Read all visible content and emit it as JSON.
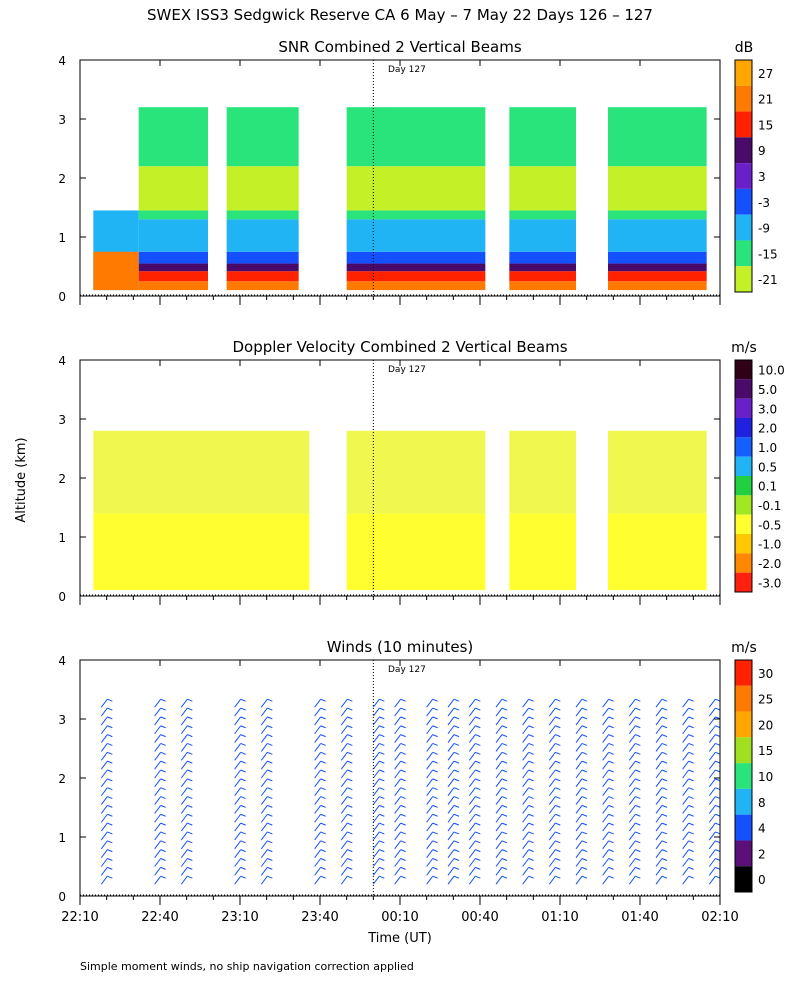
{
  "figure": {
    "title": "SWEX ISS3 Sedgwick Reserve CA   6 May –  7 May 22 Days 126 – 127",
    "ylabel": "Altitude (km)",
    "xlabel": "Time (UT)",
    "footnote": "Simple moment winds, no ship navigation correction applied",
    "day_marker": "Day 127"
  },
  "chart_data": [
    {
      "type": "heatmap",
      "title": "SNR Combined 2 Vertical Beams",
      "units": "dB",
      "xlim_minutes": [
        0,
        240
      ],
      "ylim": [
        0,
        4
      ],
      "yticks": [
        "0",
        "1",
        "2",
        "3",
        "4"
      ],
      "colorbar": {
        "labels": [
          "27",
          "21",
          "15",
          "9",
          "3",
          "-3",
          "-9",
          "-15",
          "-21"
        ],
        "colors": [
          "#ffa600",
          "#ff7a00",
          "#ff2200",
          "#4a0a6a",
          "#6a20c8",
          "#1450ff",
          "#20b4f4",
          "#28e47a",
          "#c4f028"
        ]
      },
      "fill_layers_km": [
        {
          "from": 0.1,
          "to": 0.25,
          "color": "#ff7a00"
        },
        {
          "from": 0.25,
          "to": 0.42,
          "color": "#ff2200"
        },
        {
          "from": 0.42,
          "to": 0.55,
          "color": "#4a0a6a"
        },
        {
          "from": 0.55,
          "to": 0.75,
          "color": "#1450ff"
        },
        {
          "from": 0.75,
          "to": 1.3,
          "color": "#20b4f4"
        },
        {
          "from": 1.3,
          "to": 1.45,
          "color": "#28e47a"
        },
        {
          "from": 1.45,
          "to": 2.2,
          "color": "#c4f028"
        },
        {
          "from": 2.2,
          "to": 3.2,
          "color": "#28e47a"
        }
      ]
    },
    {
      "type": "heatmap",
      "title": "Doppler Velocity Combined 2 Vertical Beams",
      "units": "m/s",
      "xlim_minutes": [
        0,
        240
      ],
      "ylim": [
        0,
        4
      ],
      "yticks": [
        "0",
        "1",
        "2",
        "3",
        "4"
      ],
      "colorbar": {
        "labels": [
          "10.0",
          "5.0",
          "3.0",
          "2.0",
          "1.0",
          "0.5",
          "0.1",
          "-0.1",
          "-0.5",
          "-1.0",
          "-2.0",
          "-3.0"
        ],
        "colors": [
          "#300018",
          "#4a0a6a",
          "#6a20c8",
          "#2020e0",
          "#1460ff",
          "#20b4f4",
          "#20d040",
          "#a0e820",
          "#ffff30",
          "#ffc800",
          "#ff8800",
          "#ff2010"
        ]
      },
      "fill_layers_km": [
        {
          "from": 0.1,
          "to": 1.4,
          "color": "#ffff30"
        },
        {
          "from": 1.4,
          "to": 2.8,
          "color": "#f0f850"
        }
      ]
    },
    {
      "type": "barb",
      "title": "Winds (10 minutes)",
      "units": "m/s",
      "xlim_minutes": [
        0,
        240
      ],
      "ylim": [
        0,
        4
      ],
      "yticks": [
        "0",
        "1",
        "2",
        "3",
        "4"
      ],
      "xticks": [
        "22:10",
        "22:40",
        "23:10",
        "23:40",
        "00:10",
        "00:40",
        "01:10",
        "01:40",
        "02:10"
      ],
      "colorbar": {
        "labels": [
          "30",
          "25",
          "20",
          "15",
          "10",
          "8",
          "4",
          "2",
          "0"
        ],
        "colors": [
          "#ff2200",
          "#ff7a00",
          "#ffa600",
          "#a0e020",
          "#28e47a",
          "#20b4f4",
          "#1450ff",
          "#5a1078",
          "#000000"
        ]
      },
      "profiles_minutes": [
        8,
        28,
        38,
        58,
        68,
        88,
        98,
        110,
        118,
        130,
        138,
        146,
        156,
        166,
        176,
        186,
        196,
        206,
        216,
        226,
        236
      ],
      "dominant_speed_ms": 4
    }
  ]
}
